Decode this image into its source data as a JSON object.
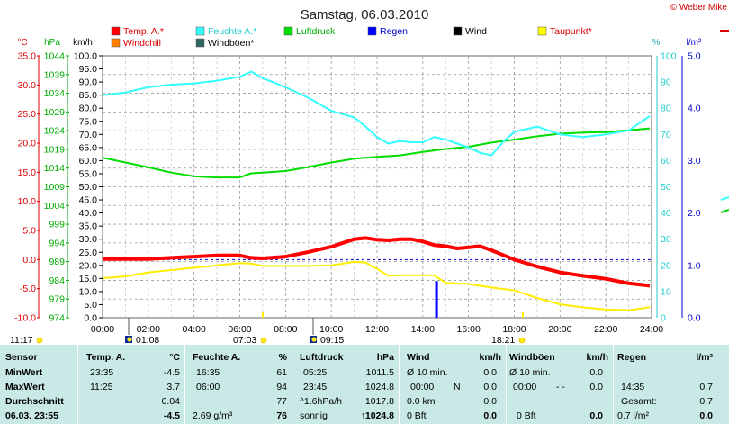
{
  "header": {
    "title": "Samstag, 06.03.2010",
    "copyright": "© Weber Mike"
  },
  "legend": [
    {
      "label": "Temp. A.*",
      "color": "#ff0000"
    },
    {
      "label": "Feuchte A.*",
      "color": "#33ffff"
    },
    {
      "label": "Luftdruck",
      "color": "#00dd00"
    },
    {
      "label": "Regen",
      "color": "#0000ff"
    },
    {
      "label": "Wind",
      "color": "#000000"
    },
    {
      "label": "Taupunkt*",
      "color": "#ffff00"
    },
    {
      "label": "Windchill",
      "color": "#ff8000"
    },
    {
      "label": "Windböen*",
      "color": "#336666"
    }
  ],
  "axes": {
    "temp_unit": "°C",
    "hpa_unit": "hPa",
    "kmh_unit": "km/h",
    "pct_unit": "%",
    "rain_unit": "l/m²",
    "temp_ticks": [
      "35.0",
      "30.0",
      "25.0",
      "20.0",
      "15.0",
      "10.0",
      "5.0",
      "0.0",
      "-5.0",
      "-10.0"
    ],
    "hpa_ticks": [
      "1044",
      "1039",
      "1034",
      "1029",
      "1024",
      "1019",
      "1014",
      "1009",
      "1004",
      "999",
      "994",
      "989",
      "984",
      "979",
      "974"
    ],
    "kmh_ticks": [
      "100.0",
      "95.0",
      "90.0",
      "85.0",
      "80.0",
      "75.0",
      "70.0",
      "65.0",
      "60.0",
      "55.0",
      "50.0",
      "45.0",
      "40.0",
      "35.0",
      "30.0",
      "25.0",
      "20.0",
      "15.0",
      "10.0",
      "5.0",
      "0.0"
    ],
    "pct_ticks": [
      "100",
      "90",
      "80",
      "70",
      "60",
      "50",
      "40",
      "30",
      "20",
      "10",
      "0"
    ],
    "rain_ticks": [
      "5.0",
      "4.0",
      "3.0",
      "2.0",
      "1.0",
      "0.0"
    ],
    "x_ticks": [
      "00:00",
      "02:00",
      "04:00",
      "06:00",
      "08:00",
      "10:00",
      "12:00",
      "14:00",
      "16:00",
      "18:00",
      "20:00",
      "22:00",
      "24:00"
    ]
  },
  "sun_marks": {
    "sunrise_left": "11:17",
    "moon1": "01:08",
    "sunrise": "07:03",
    "moon2": "09:15",
    "sunset": "18:21"
  },
  "chart_data": {
    "type": "line",
    "x_unit": "hour",
    "xlim": [
      0,
      24
    ],
    "series": [
      {
        "name": "Temp. A.*",
        "axis": "°C",
        "ylim": [
          -10,
          35
        ],
        "x": [
          0,
          1,
          2,
          3,
          4,
          5,
          6,
          6.5,
          7,
          8,
          9,
          10,
          11,
          11.5,
          12,
          12.5,
          13,
          13.5,
          14,
          14.5,
          15,
          15.5,
          16,
          16.5,
          17,
          17.5,
          18,
          19,
          20,
          21,
          22,
          23,
          23.92
        ],
        "y": [
          0.1,
          0.1,
          0.1,
          0.3,
          0.5,
          0.7,
          0.7,
          0.3,
          0.2,
          0.5,
          1.3,
          2.2,
          3.5,
          3.7,
          3.4,
          3.3,
          3.5,
          3.5,
          3.1,
          2.5,
          2.3,
          1.9,
          2.1,
          2.3,
          1.6,
          0.8,
          0,
          -1.2,
          -2.2,
          -2.8,
          -3.3,
          -4.1,
          -4.5
        ]
      },
      {
        "name": "Feuchte A.*",
        "axis": "%",
        "ylim": [
          0,
          100
        ],
        "x": [
          0,
          1,
          2,
          3,
          4,
          5,
          6,
          6.5,
          7,
          8,
          9,
          10,
          11,
          11.5,
          12,
          12.5,
          13,
          13.5,
          14,
          14.5,
          15,
          15.5,
          16,
          16.5,
          17,
          17.5,
          18,
          19,
          20,
          21,
          22,
          23,
          23.92
        ],
        "y": [
          85,
          86,
          88,
          89,
          89.5,
          90.5,
          92,
          94,
          91.5,
          88,
          84,
          79,
          76.5,
          73,
          69,
          66.5,
          67.5,
          67,
          67,
          69,
          68,
          66.5,
          65,
          63,
          62,
          67,
          71,
          73,
          70,
          69,
          70,
          71.5,
          77
        ]
      },
      {
        "name": "Luftdruck",
        "axis": "hPa",
        "ylim": [
          974,
          1044
        ],
        "x": [
          0,
          1,
          2,
          3,
          4,
          5,
          6,
          6.5,
          7,
          8,
          9,
          10,
          11,
          12,
          13,
          14,
          15,
          16,
          17,
          18,
          19,
          20,
          21,
          22,
          23,
          23.92
        ],
        "y": [
          1016.8,
          1015.5,
          1014.2,
          1012.8,
          1011.8,
          1011.5,
          1011.5,
          1012.6,
          1012.8,
          1013.2,
          1014.3,
          1015.5,
          1016.5,
          1017.0,
          1017.4,
          1018.3,
          1019.1,
          1019.7,
          1020.8,
          1021.6,
          1022.5,
          1023.2,
          1023.5,
          1023.6,
          1024.1,
          1024.6
        ]
      },
      {
        "name": "Taupunkt*",
        "axis": "°C",
        "ylim": [
          -10,
          35
        ],
        "x": [
          0,
          1,
          2,
          3,
          4,
          5,
          6,
          6.5,
          7,
          8,
          9,
          10,
          11,
          11.5,
          12,
          12.5,
          13,
          13.5,
          14,
          14.5,
          15,
          16,
          17,
          18,
          19,
          20,
          21,
          22,
          23,
          23.92
        ],
        "y": [
          -3.2,
          -2.9,
          -2.2,
          -1.8,
          -1.4,
          -1.0,
          -0.6,
          -0.7,
          -1.1,
          -1.1,
          -1.1,
          -1.0,
          -0.4,
          -0.5,
          -1.6,
          -2.8,
          -2.7,
          -2.7,
          -2.7,
          -2.7,
          -4.0,
          -4.2,
          -4.8,
          -5.3,
          -6.6,
          -7.7,
          -8.2,
          -8.6,
          -8.7,
          -8.2
        ]
      }
    ],
    "rain_bar": {
      "x": 14.6,
      "value": 0.7,
      "axis": "l/m²",
      "ylim": [
        0,
        5
      ]
    },
    "dew_zero_dashed": true,
    "grid": true
  },
  "stats": {
    "sensor": {
      "head": "Sensor",
      "min": "MinWert",
      "max": "MaxWert",
      "avg": "Durchschnitt",
      "now": "06.03.  23:55"
    },
    "temp": {
      "head": "Temp. A.",
      "unit": "°C",
      "min_time": "23:35",
      "min_val": "-4.5",
      "max_time": "11:25",
      "max_val": "3.7",
      "avg_val": "0.04",
      "now_val": "-4.5"
    },
    "hum": {
      "head": "Feuchte A.",
      "unit": "%",
      "min_time": "16:35",
      "min_val": "61",
      "max_time": "06:00",
      "max_val": "94",
      "avg_val": "77",
      "now_extra": "2.69 g/m³",
      "now_val": "76"
    },
    "press": {
      "head": "Luftdruck",
      "unit": "hPa",
      "min_time": "05:25",
      "min_val": "1011.5",
      "max_time": "23:45",
      "max_val": "1024.8",
      "avg_label": "^1.6hPa/h",
      "avg_val": "1017.8",
      "now_label": "sonnig",
      "now_val": "↑1024.8"
    },
    "wind": {
      "head": "Wind",
      "unit": "km/h",
      "r1_label": "Ø 10 min.",
      "r1_val": "0.0",
      "r2_time": "00:00",
      "r2_dir": "N",
      "r2_val": "0.0",
      "r3_label": "0.0 km",
      "r3_val": "0.0",
      "r4_label": "0 Bft",
      "r4_val": "0.0"
    },
    "gust": {
      "head": "Windböen",
      "unit": "km/h",
      "r1_label": "Ø 10 min.",
      "r1_val": "0.0",
      "r2_time": "00:00",
      "r2_dir": "- -",
      "r2_val": "0.0",
      "r4_label": "0 Bft",
      "r4_val": "0.0"
    },
    "rain": {
      "head": "Regen",
      "unit": "l/m²",
      "r2_time": "14:35",
      "r2_val": "0.7",
      "r3_label": "Gesamt:",
      "r3_val": "0.7",
      "r4_label": "0.7 l/m²",
      "r4_val": "0.0"
    }
  }
}
